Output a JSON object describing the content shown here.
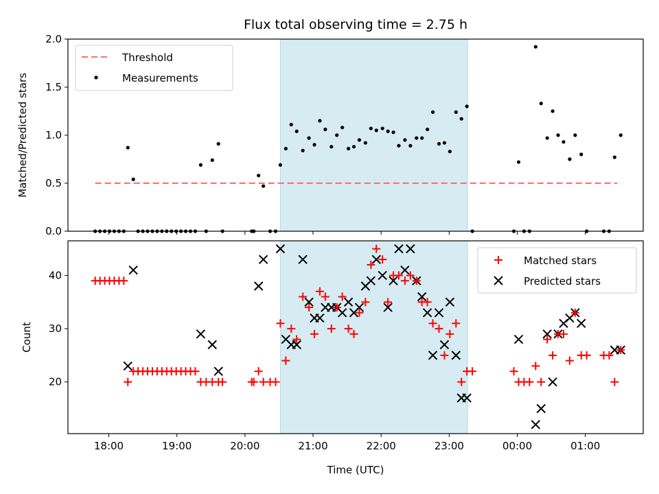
{
  "chart_data": [
    {
      "type": "scatter",
      "title": "Flux total observing time = 2.75 h",
      "ylabel": "Matched/Predicted stars",
      "xlabel": "",
      "ylim": [
        0,
        2.0
      ],
      "yticks": [
        "0.0",
        "0.5",
        "1.0",
        "1.5",
        "2.0"
      ],
      "xlim_hours": [
        17.4,
        25.85
      ],
      "xticks": [
        18,
        19,
        20,
        21,
        22,
        23,
        24,
        25
      ],
      "xtick_labels": [],
      "shaded_region": {
        "from": 20.52,
        "to": 23.27,
        "color": "#add8e6"
      },
      "legend": {
        "position": "upper-left",
        "entries": [
          "Threshold",
          "Measurements"
        ]
      },
      "colors": {
        "threshold": "#ff6b6b",
        "points": "#000000",
        "shade": "#add8e6"
      },
      "series": [
        {
          "name": "Threshold",
          "kind": "dashed-line",
          "x": [
            17.8,
            25.47
          ],
          "y": [
            0.5,
            0.5
          ]
        },
        {
          "name": "Measurements",
          "kind": "points",
          "x": [
            17.8,
            17.87,
            17.94,
            18.01,
            18.08,
            18.15,
            18.22,
            18.28,
            18.36,
            18.43,
            18.5,
            18.57,
            18.64,
            18.71,
            18.78,
            18.85,
            18.92,
            18.99,
            19.06,
            19.13,
            19.2,
            19.27,
            19.35,
            19.43,
            19.52,
            19.61,
            19.67,
            20.1,
            20.13,
            20.2,
            20.27,
            20.37,
            20.45,
            20.52,
            20.6,
            20.68,
            20.76,
            20.85,
            20.94,
            21.02,
            21.1,
            21.18,
            21.27,
            21.35,
            21.43,
            21.52,
            21.6,
            21.68,
            21.77,
            21.85,
            21.93,
            22.02,
            22.1,
            22.18,
            22.26,
            22.35,
            22.43,
            22.52,
            22.6,
            22.68,
            22.76,
            22.85,
            22.93,
            23.01,
            23.1,
            23.18,
            23.26,
            23.34,
            23.95,
            24.02,
            24.1,
            24.18,
            24.27,
            24.35,
            24.44,
            24.52,
            24.6,
            24.68,
            24.77,
            24.85,
            24.94,
            25.02,
            25.27,
            25.35,
            25.43,
            25.52
          ],
          "y": [
            0,
            0,
            0,
            0,
            0,
            0,
            0,
            0.87,
            0.54,
            0,
            0,
            0,
            0,
            0,
            0,
            0,
            0,
            0,
            0,
            0,
            0,
            0,
            0.69,
            0,
            0.74,
            0.91,
            0,
            0,
            0,
            0.58,
            0.47,
            0,
            0,
            0.69,
            0.86,
            1.11,
            1.04,
            0.84,
            0.97,
            0.9,
            1.15,
            1.06,
            0.88,
            1.0,
            1.08,
            0.86,
            0.88,
            0.95,
            0.92,
            1.07,
            1.05,
            1.07,
            1.04,
            1.03,
            0.89,
            0.95,
            0.89,
            0.97,
            0.97,
            1.06,
            1.24,
            0.91,
            0.92,
            0.83,
            1.24,
            1.17,
            1.3,
            0,
            0,
            0.72,
            0,
            0,
            1.92,
            1.33,
            0.97,
            1.25,
            1.0,
            0.93,
            0.75,
            1.0,
            0.8,
            0,
            0,
            0,
            0.77,
            1.0
          ]
        }
      ]
    },
    {
      "type": "scatter",
      "title": "",
      "ylabel": "Count",
      "xlabel": "Time (UTC)",
      "ylim": [
        10.3,
        46.5
      ],
      "yticks": [
        "20",
        "30",
        "40"
      ],
      "xlim_hours": [
        17.4,
        25.85
      ],
      "xticks": [
        18,
        19,
        20,
        21,
        22,
        23,
        24,
        25
      ],
      "xtick_labels": [
        "18:00",
        "19:00",
        "20:00",
        "21:00",
        "22:00",
        "23:00",
        "00:00",
        "01:00"
      ],
      "shaded_region": {
        "from": 20.52,
        "to": 23.27,
        "color": "#add8e6"
      },
      "legend": {
        "position": "upper-right",
        "entries": [
          "Matched stars",
          "Predicted stars"
        ]
      },
      "colors": {
        "matched": "#ff0000",
        "predicted": "#000000",
        "shade": "#add8e6"
      },
      "series": [
        {
          "name": "Matched stars",
          "marker": "plus",
          "x": [
            17.8,
            17.87,
            17.94,
            18.01,
            18.08,
            18.15,
            18.22,
            18.28,
            18.36,
            18.43,
            18.5,
            18.57,
            18.64,
            18.71,
            18.78,
            18.85,
            18.92,
            18.99,
            19.06,
            19.13,
            19.2,
            19.27,
            19.35,
            19.43,
            19.52,
            19.61,
            19.67,
            20.1,
            20.13,
            20.2,
            20.27,
            20.37,
            20.45,
            20.52,
            20.6,
            20.68,
            20.76,
            20.85,
            20.94,
            21.02,
            21.1,
            21.18,
            21.27,
            21.35,
            21.43,
            21.52,
            21.6,
            21.68,
            21.77,
            21.85,
            21.93,
            22.02,
            22.1,
            22.18,
            22.26,
            22.35,
            22.43,
            22.52,
            22.6,
            22.68,
            22.76,
            22.85,
            22.93,
            23.01,
            23.1,
            23.18,
            23.26,
            23.34,
            23.95,
            24.02,
            24.1,
            24.18,
            24.27,
            24.35,
            24.44,
            24.52,
            24.6,
            24.68,
            24.77,
            24.85,
            24.94,
            25.02,
            25.27,
            25.35,
            25.43,
            25.52
          ],
          "y": [
            39,
            39,
            39,
            39,
            39,
            39,
            39,
            20,
            22,
            22,
            22,
            22,
            22,
            22,
            22,
            22,
            22,
            22,
            22,
            22,
            22,
            22,
            20,
            20,
            20,
            20,
            20,
            20,
            20,
            22,
            20,
            20,
            20,
            31,
            24,
            30,
            28,
            36,
            34,
            29,
            37,
            36,
            30,
            34,
            36,
            30,
            29,
            33,
            35,
            42,
            45,
            43,
            35,
            40,
            40,
            39,
            40,
            39,
            35,
            35,
            31,
            30,
            25,
            29,
            31,
            20,
            22,
            22,
            22,
            20,
            20,
            20,
            23,
            20,
            28,
            25,
            29,
            29,
            24,
            33,
            25,
            25,
            25,
            25,
            20,
            26
          ]
        },
        {
          "name": "Predicted stars",
          "marker": "cross",
          "x": [
            18.28,
            18.36,
            19.35,
            19.52,
            19.61,
            20.2,
            20.27,
            20.52,
            20.6,
            20.68,
            20.76,
            20.85,
            20.94,
            21.02,
            21.1,
            21.18,
            21.27,
            21.35,
            21.43,
            21.52,
            21.6,
            21.68,
            21.77,
            21.85,
            21.93,
            22.02,
            22.1,
            22.18,
            22.26,
            22.35,
            22.43,
            22.52,
            22.6,
            22.68,
            22.76,
            22.85,
            22.93,
            23.01,
            23.1,
            23.18,
            23.26,
            24.02,
            24.27,
            24.35,
            24.44,
            24.52,
            24.6,
            24.68,
            24.77,
            24.85,
            24.94,
            25.43,
            25.52
          ],
          "y": [
            23,
            41,
            29,
            27,
            22,
            38,
            43,
            45,
            28,
            27,
            27,
            43,
            35,
            32,
            32,
            34,
            34,
            34,
            33,
            35,
            33,
            34,
            38,
            39,
            43,
            40,
            34,
            39,
            45,
            41,
            45,
            39,
            36,
            33,
            25,
            33,
            27,
            35,
            25,
            17,
            17,
            28,
            12,
            15,
            29,
            20,
            29,
            31,
            32,
            33,
            31,
            26,
            26
          ]
        }
      ]
    }
  ]
}
